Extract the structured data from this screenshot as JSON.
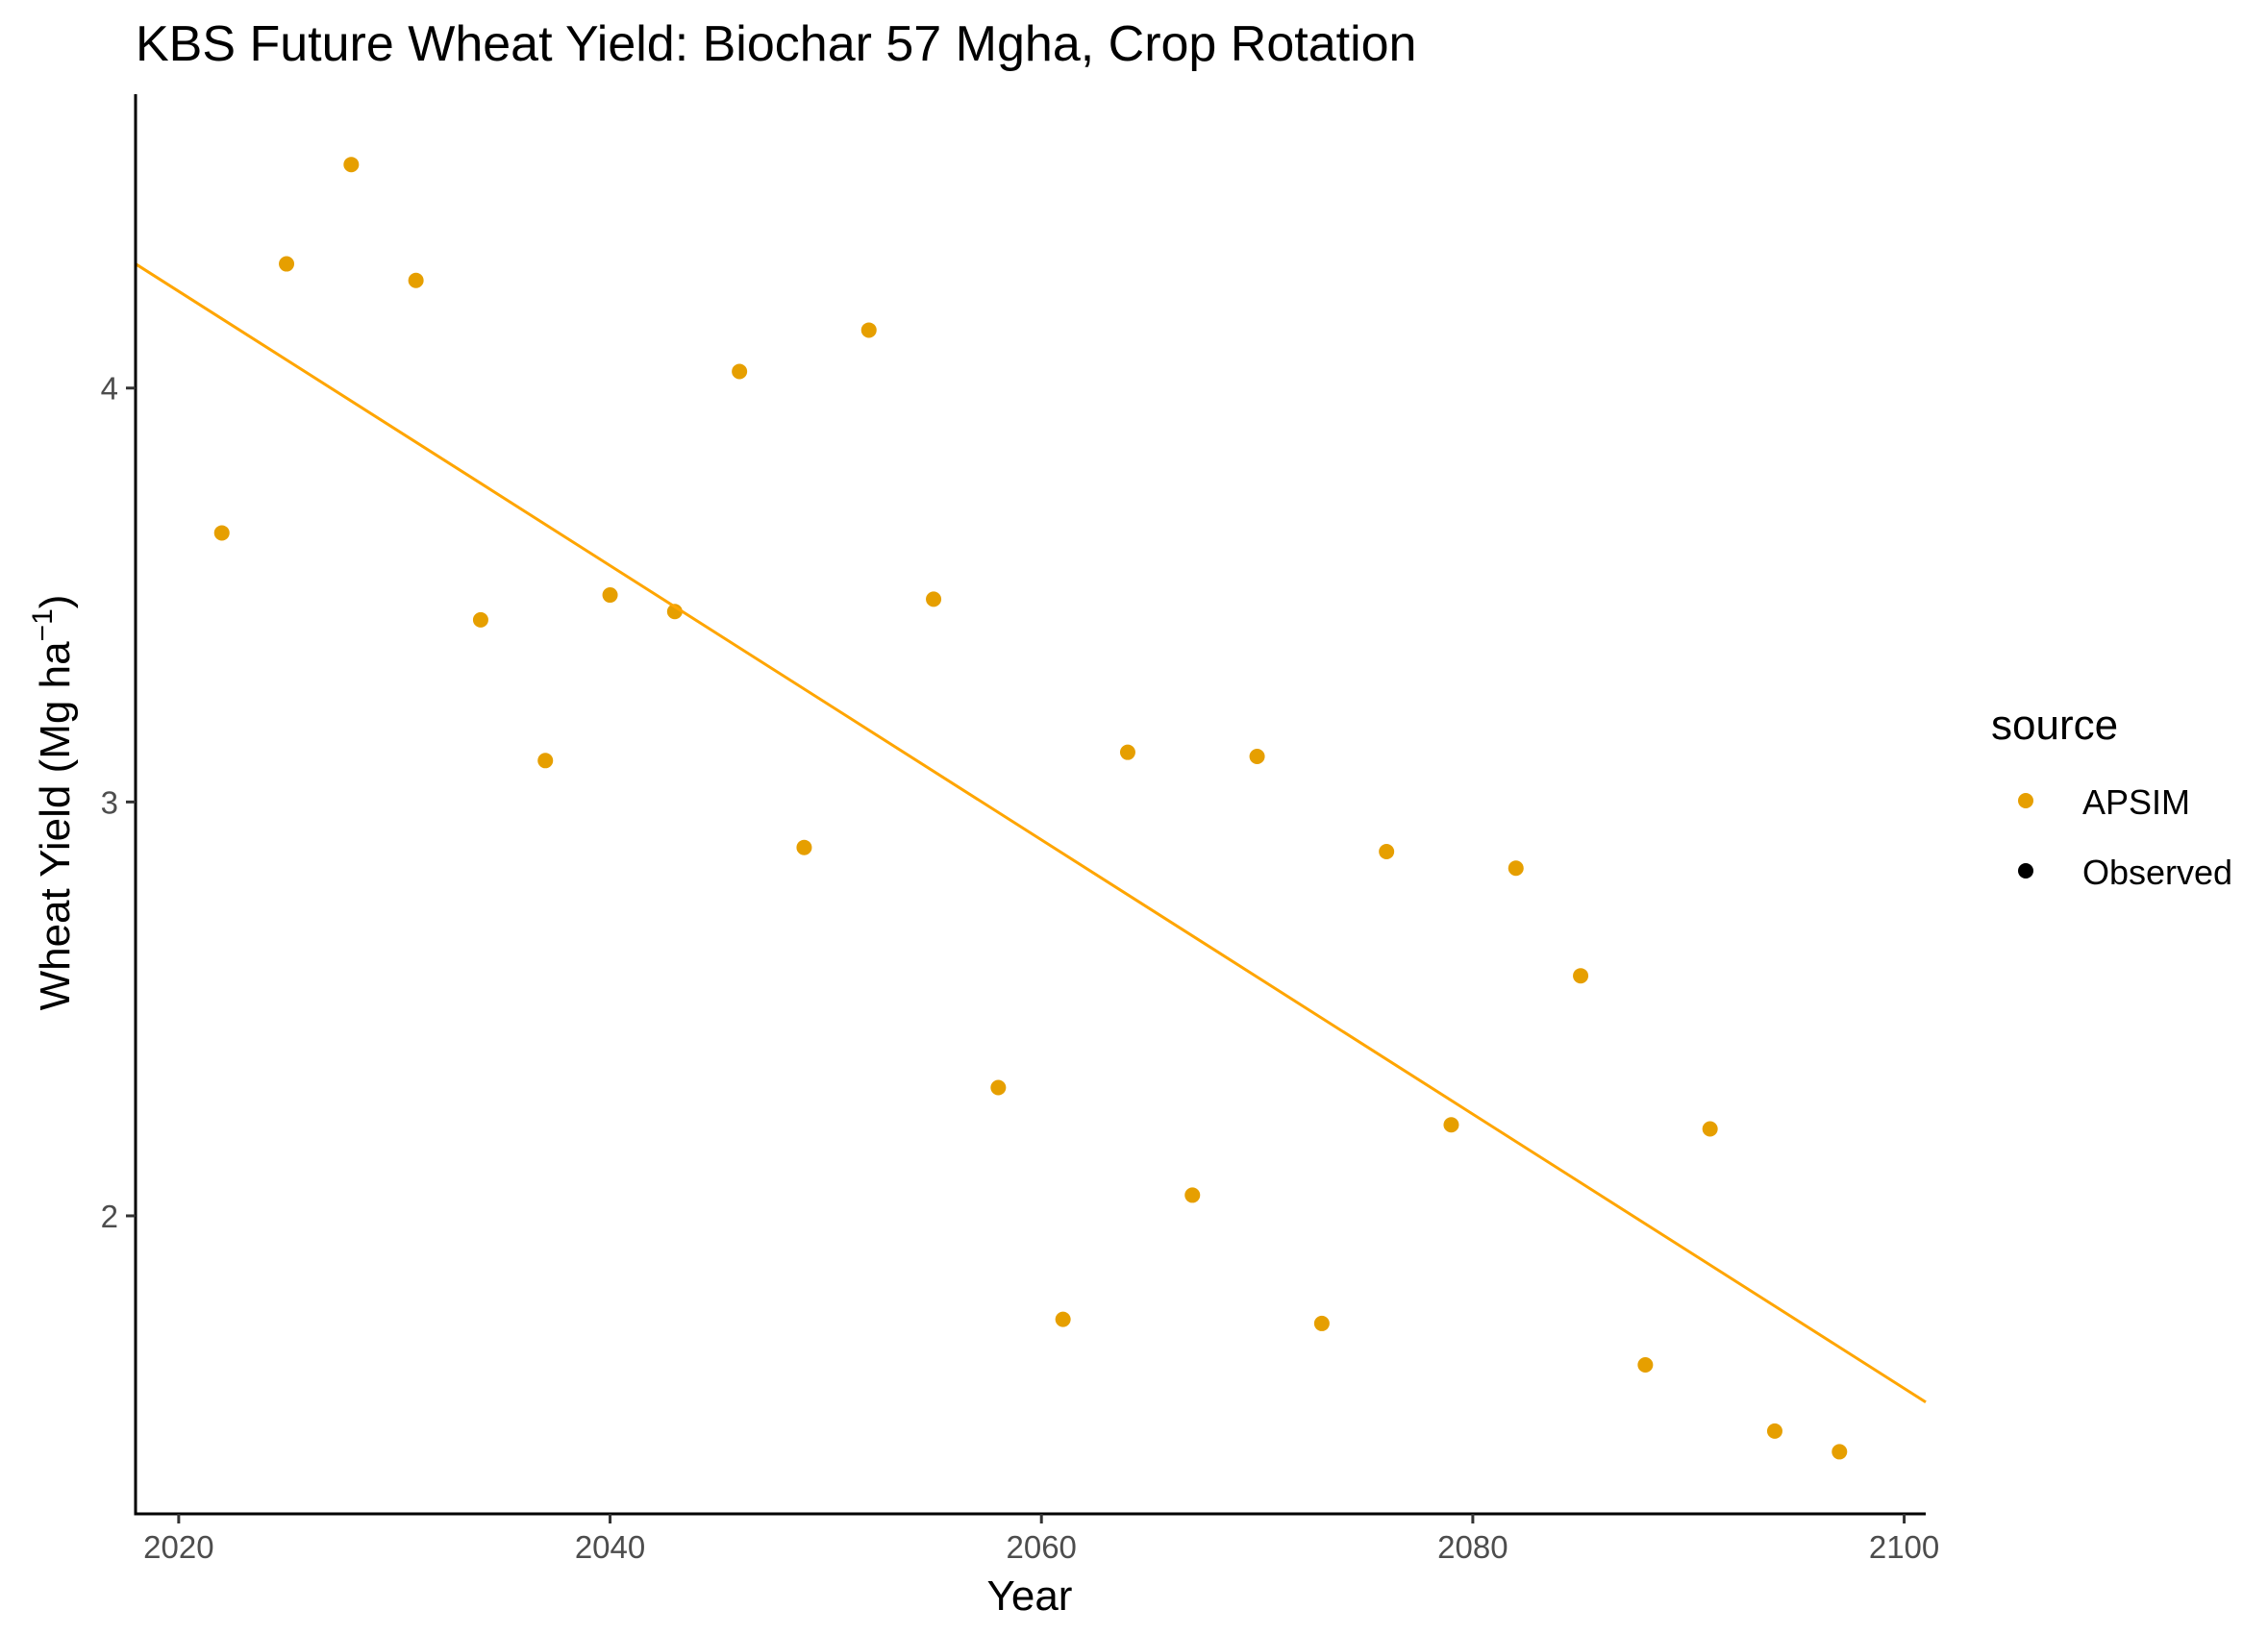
{
  "chart_data": {
    "type": "scatter",
    "title": "KBS Future Wheat Yield:  Biochar 57 Mgha, Crop Rotation",
    "xlabel": "Year",
    "ylabel": "Wheat Yield (Mg ha",
    "ylabel_superscript": "−1",
    "ylabel_close": ")",
    "xlim": [
      2018,
      2101
    ],
    "ylim": [
      1.28,
      4.71
    ],
    "x_ticks": [
      2020,
      2040,
      2060,
      2080,
      2100
    ],
    "x_tick_labels": [
      "2020",
      "2040",
      "2060",
      "2080",
      "2100"
    ],
    "y_ticks": [
      2,
      3,
      4
    ],
    "y_tick_labels": [
      "2",
      "3",
      "4"
    ],
    "grid": false,
    "legend": {
      "title": "source",
      "position": "right",
      "entries": [
        {
          "label": "APSIM",
          "color": "#E69F00"
        },
        {
          "label": "Observed",
          "color": "#000000"
        }
      ]
    },
    "series": [
      {
        "name": "APSIM",
        "color": "#E69F00",
        "x": [
          2022,
          2025,
          2028,
          2031,
          2034,
          2037,
          2040,
          2043,
          2046,
          2049,
          2052,
          2055,
          2058,
          2061,
          2064,
          2067,
          2070,
          2073,
          2076,
          2079,
          2082,
          2085,
          2088,
          2091,
          2094,
          2097
        ],
        "y": [
          3.65,
          4.3,
          4.54,
          4.26,
          3.44,
          3.1,
          3.5,
          3.46,
          4.04,
          2.89,
          4.14,
          3.49,
          2.31,
          1.75,
          3.12,
          2.05,
          3.11,
          1.74,
          2.88,
          2.22,
          2.84,
          2.58,
          1.64,
          2.21,
          1.48,
          1.43
        ]
      }
    ],
    "trendline": {
      "color": "#FFA500",
      "x": [
        2018,
        2101
      ],
      "y": [
        4.3,
        1.55
      ]
    }
  }
}
